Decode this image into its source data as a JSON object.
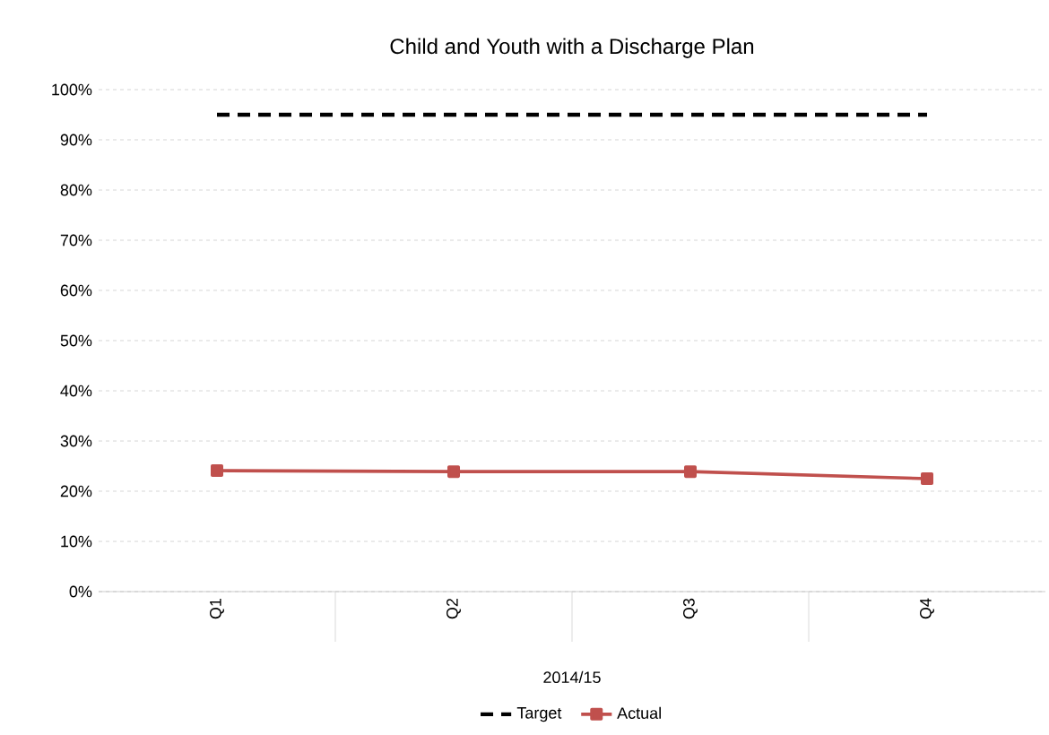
{
  "chart_data": {
    "type": "line",
    "title": "Child and Youth with a Discharge Plan",
    "xlabel": "2014/15",
    "categories": [
      "Q1",
      "Q2",
      "Q3",
      "Q4"
    ],
    "series": [
      {
        "name": "Target",
        "color": "#000000",
        "values": [
          95,
          95,
          95,
          95
        ],
        "line_style": "dashed",
        "marker": "none"
      },
      {
        "name": "Actual",
        "color": "#c0504d",
        "values": [
          24.1,
          23.9,
          23.9,
          22.5
        ],
        "line_style": "solid",
        "marker": "square"
      }
    ],
    "ylim": [
      0,
      100
    ],
    "yticks": [
      {
        "value": 0,
        "label": "0%"
      },
      {
        "value": 10,
        "label": "10%"
      },
      {
        "value": 20,
        "label": "20%"
      },
      {
        "value": 30,
        "label": "30%"
      },
      {
        "value": 40,
        "label": "40%"
      },
      {
        "value": 50,
        "label": "50%"
      },
      {
        "value": 60,
        "label": "60%"
      },
      {
        "value": 70,
        "label": "70%"
      },
      {
        "value": 80,
        "label": "80%"
      },
      {
        "value": 90,
        "label": "90%"
      },
      {
        "value": 100,
        "label": "100%"
      }
    ],
    "grid": "y",
    "legend": "bottom"
  }
}
